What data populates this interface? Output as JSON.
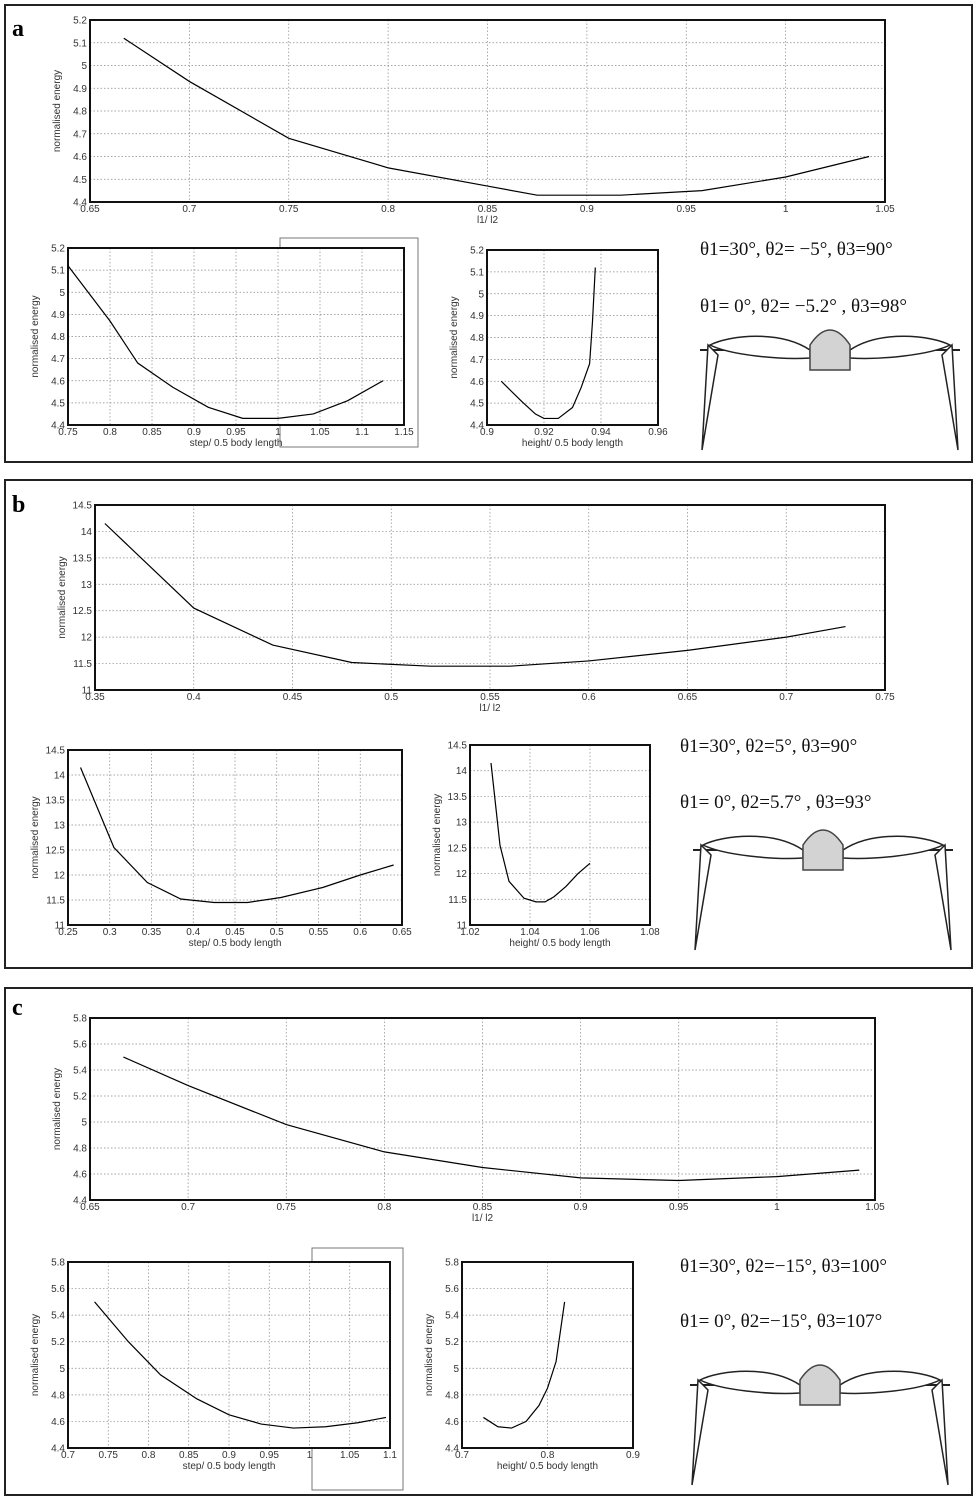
{
  "panels": [
    {
      "label": "a",
      "annotations": [
        "θ1=30°, θ2= −5°, θ3=90°",
        "θ1= 0°, θ2= −5.2° , θ3=98°"
      ]
    },
    {
      "label": "b",
      "annotations": [
        "θ1=30°, θ2=5°, θ3=90°",
        "θ1= 0°, θ2=5.7° , θ3=93°"
      ]
    },
    {
      "label": "c",
      "annotations": [
        "θ1=30°, θ2=−15°, θ3=100°",
        "θ1= 0°, θ2=−15°, θ3=107°"
      ]
    }
  ],
  "chart_data": [
    {
      "type": "line",
      "xlabel": "l1/ l2",
      "ylabel": "normalised energy",
      "color": "#000000",
      "grid": true,
      "x": [
        0.667,
        0.7,
        0.75,
        0.8,
        0.85,
        0.875,
        0.917,
        0.958,
        1.0,
        1.042
      ],
      "values": [
        5.12,
        4.93,
        4.68,
        4.55,
        4.47,
        4.43,
        4.43,
        4.45,
        4.51,
        4.6
      ],
      "xlim": [
        0.65,
        1.05
      ],
      "xticks": [
        0.65,
        0.7,
        0.75,
        0.8,
        0.85,
        0.9,
        0.95,
        1,
        1.05
      ],
      "ylim": [
        4.4,
        5.2
      ],
      "yticks": [
        4.4,
        4.5,
        4.6,
        4.7,
        4.8,
        4.9,
        5,
        5.1,
        5.2
      ]
    },
    {
      "type": "line",
      "xlabel": "step/ 0.5 body length",
      "ylabel": "normalised energy",
      "color": "#000000",
      "grid": true,
      "x": [
        0.75,
        0.8,
        0.833,
        0.875,
        0.917,
        0.958,
        1.0,
        1.042,
        1.083,
        1.125
      ],
      "values": [
        5.12,
        4.87,
        4.68,
        4.57,
        4.48,
        4.43,
        4.43,
        4.45,
        4.51,
        4.6
      ],
      "xlim": [
        0.75,
        1.15
      ],
      "xticks": [
        0.75,
        0.8,
        0.85,
        0.9,
        0.95,
        1,
        1.05,
        1.1,
        1.15
      ],
      "ylim": [
        4.4,
        5.2
      ],
      "yticks": [
        4.4,
        4.5,
        4.6,
        4.7,
        4.8,
        4.9,
        5,
        5.1,
        5.2
      ]
    },
    {
      "type": "line",
      "xlabel": "height/ 0.5 body length",
      "ylabel": "normalised energy",
      "color": "#000000",
      "grid": true,
      "x": [
        0.905,
        0.912,
        0.917,
        0.92,
        0.925,
        0.93,
        0.933,
        0.936,
        0.937,
        0.938
      ],
      "values": [
        4.6,
        4.51,
        4.45,
        4.43,
        4.43,
        4.48,
        4.57,
        4.68,
        4.87,
        5.12
      ],
      "xlim": [
        0.9,
        0.96
      ],
      "xticks": [
        0.9,
        0.92,
        0.94,
        0.96
      ],
      "ylim": [
        4.4,
        5.2
      ],
      "yticks": [
        4.4,
        4.5,
        4.6,
        4.7,
        4.8,
        4.9,
        5,
        5.1,
        5.2
      ]
    },
    {
      "type": "line",
      "xlabel": "l1/ l2",
      "ylabel": "normalised energy",
      "color": "#000000",
      "grid": true,
      "x": [
        0.355,
        0.4,
        0.44,
        0.48,
        0.52,
        0.56,
        0.6,
        0.65,
        0.7,
        0.73
      ],
      "values": [
        14.15,
        12.55,
        11.85,
        11.52,
        11.45,
        11.45,
        11.55,
        11.75,
        12.0,
        12.2
      ],
      "xlim": [
        0.35,
        0.75
      ],
      "xticks": [
        0.35,
        0.4,
        0.45,
        0.5,
        0.55,
        0.6,
        0.65,
        0.7,
        0.75
      ],
      "ylim": [
        11,
        14.5
      ],
      "yticks": [
        11,
        11.5,
        12,
        12.5,
        13,
        13.5,
        14,
        14.5
      ]
    },
    {
      "type": "line",
      "xlabel": "step/ 0.5 body length",
      "ylabel": "normalised energy",
      "color": "#000000",
      "grid": true,
      "x": [
        0.265,
        0.305,
        0.345,
        0.385,
        0.425,
        0.465,
        0.505,
        0.555,
        0.6,
        0.64
      ],
      "values": [
        14.15,
        12.55,
        11.85,
        11.52,
        11.45,
        11.45,
        11.55,
        11.75,
        12.0,
        12.2
      ],
      "xlim": [
        0.25,
        0.65
      ],
      "xticks": [
        0.25,
        0.3,
        0.35,
        0.4,
        0.45,
        0.5,
        0.55,
        0.6,
        0.65
      ],
      "ylim": [
        11,
        14.5
      ],
      "yticks": [
        11,
        11.5,
        12,
        12.5,
        13,
        13.5,
        14,
        14.5
      ]
    },
    {
      "type": "line",
      "xlabel": "height/ 0.5 body length",
      "ylabel": "normalised energy",
      "color": "#000000",
      "grid": true,
      "x": [
        1.027,
        1.03,
        1.033,
        1.038,
        1.042,
        1.045,
        1.048,
        1.052,
        1.056,
        1.06
      ],
      "values": [
        14.15,
        12.55,
        11.85,
        11.52,
        11.45,
        11.45,
        11.55,
        11.75,
        12.0,
        12.2
      ],
      "xlim": [
        1.02,
        1.08
      ],
      "xticks": [
        1.02,
        1.04,
        1.06,
        1.08
      ],
      "ylim": [
        11,
        14.5
      ],
      "yticks": [
        11,
        11.5,
        12,
        12.5,
        13,
        13.5,
        14,
        14.5
      ]
    },
    {
      "type": "line",
      "xlabel": "l1/ l2",
      "ylabel": "normalised energy",
      "color": "#000000",
      "grid": true,
      "x": [
        0.667,
        0.7,
        0.75,
        0.8,
        0.85,
        0.9,
        0.95,
        1.0,
        1.042
      ],
      "values": [
        5.5,
        5.28,
        4.98,
        4.77,
        4.65,
        4.57,
        4.55,
        4.58,
        4.63
      ],
      "xlim": [
        0.65,
        1.05
      ],
      "xticks": [
        0.65,
        0.7,
        0.75,
        0.8,
        0.85,
        0.9,
        0.95,
        1,
        1.05
      ],
      "ylim": [
        4.4,
        5.8
      ],
      "yticks": [
        4.4,
        4.6,
        4.8,
        5,
        5.2,
        5.4,
        5.6,
        5.8
      ]
    },
    {
      "type": "line",
      "xlabel": "step/ 0.5 body length",
      "ylabel": "normalised energy",
      "color": "#000000",
      "grid": true,
      "x": [
        0.733,
        0.775,
        0.815,
        0.86,
        0.9,
        0.94,
        0.98,
        1.02,
        1.06,
        1.095
      ],
      "values": [
        5.5,
        5.2,
        4.95,
        4.77,
        4.65,
        4.58,
        4.55,
        4.56,
        4.59,
        4.63
      ],
      "xlim": [
        0.7,
        1.1
      ],
      "xticks": [
        0.7,
        0.75,
        0.8,
        0.85,
        0.9,
        0.95,
        1,
        1.05,
        1.1
      ],
      "ylim": [
        4.4,
        5.8
      ],
      "yticks": [
        4.4,
        4.6,
        4.8,
        5,
        5.2,
        5.4,
        5.6,
        5.8
      ]
    },
    {
      "type": "line",
      "xlabel": "height/ 0.5 body length",
      "ylabel": "normalised energy",
      "color": "#000000",
      "grid": true,
      "x": [
        0.725,
        0.742,
        0.758,
        0.775,
        0.79,
        0.8,
        0.81,
        0.82
      ],
      "values": [
        4.63,
        4.56,
        4.55,
        4.6,
        4.72,
        4.85,
        5.05,
        5.5
      ],
      "xlim": [
        0.7,
        0.9
      ],
      "xticks": [
        0.7,
        0.8,
        0.9
      ],
      "ylim": [
        4.4,
        5.8
      ],
      "yticks": [
        4.4,
        4.6,
        4.8,
        5,
        5.2,
        5.4,
        5.6,
        5.8
      ]
    }
  ]
}
